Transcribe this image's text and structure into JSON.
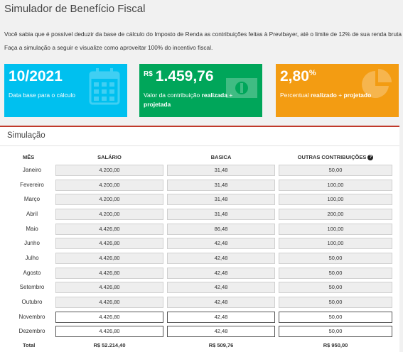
{
  "page": {
    "title": "Simulador de Benefício Fiscal",
    "intro_line1": "Você sabia que é possível deduzir da base de cálculo do Imposto de Renda as contribuições feitas à Previbayer, até o limite de 12% de sua renda bruta anual?",
    "intro_line2": "Faça a simulação a seguir e visualize como aproveitar 100% do incentivo fiscal."
  },
  "boxes": {
    "date": {
      "value": "10/2021",
      "label": "Data base para o cálculo",
      "icon": "calendar-icon",
      "color": "#00c0ef"
    },
    "contribution": {
      "currency": "R$",
      "value": "1.459,76",
      "label_pre": "Valor da contribuição ",
      "label_bold1": "realizada",
      "label_mid": " + ",
      "label_bold2": "projetada",
      "icon": "money-icon",
      "color": "#00a65a"
    },
    "percent": {
      "value": "2,80",
      "unit": "%",
      "label_pre": "Percentual ",
      "label_bold1": "realizado",
      "label_mid": " + ",
      "label_bold2": "projetado",
      "icon": "pie-chart-icon",
      "color": "#f39c12"
    }
  },
  "simulation": {
    "title": "Simulação",
    "headers": {
      "month": "MÊS",
      "salary": "SALÁRIO",
      "basic": "BASICA",
      "other": "OUTRAS CONTRIBUIÇÕES"
    },
    "rows": [
      {
        "month": "Janeiro",
        "salary": "4.200,00",
        "basic": "31,48",
        "other": "50,00"
      },
      {
        "month": "Fevereiro",
        "salary": "4.200,00",
        "basic": "31,48",
        "other": "100,00"
      },
      {
        "month": "Março",
        "salary": "4.200,00",
        "basic": "31,48",
        "other": "100,00"
      },
      {
        "month": "Abril",
        "salary": "4.200,00",
        "basic": "31,48",
        "other": "200,00"
      },
      {
        "month": "Maio",
        "salary": "4.426,80",
        "basic": "86,48",
        "other": "100,00"
      },
      {
        "month": "Junho",
        "salary": "4.426,80",
        "basic": "42,48",
        "other": "100,00"
      },
      {
        "month": "Julho",
        "salary": "4.426,80",
        "basic": "42,48",
        "other": "50,00"
      },
      {
        "month": "Agosto",
        "salary": "4.426,80",
        "basic": "42,48",
        "other": "50,00"
      },
      {
        "month": "Setembro",
        "salary": "4.426,80",
        "basic": "42,48",
        "other": "50,00"
      },
      {
        "month": "Outubro",
        "salary": "4.426,80",
        "basic": "42,48",
        "other": "50,00"
      },
      {
        "month": "Novembro",
        "salary": "4.426,80",
        "basic": "42,48",
        "other": "50,00"
      },
      {
        "month": "Dezembro",
        "salary": "4.426,80",
        "basic": "42,48",
        "other": "50,00"
      }
    ],
    "total": {
      "label": "Total",
      "salary": "R$ 52.214,40",
      "basic": "R$ 509,76",
      "other": "R$ 950,00"
    }
  }
}
